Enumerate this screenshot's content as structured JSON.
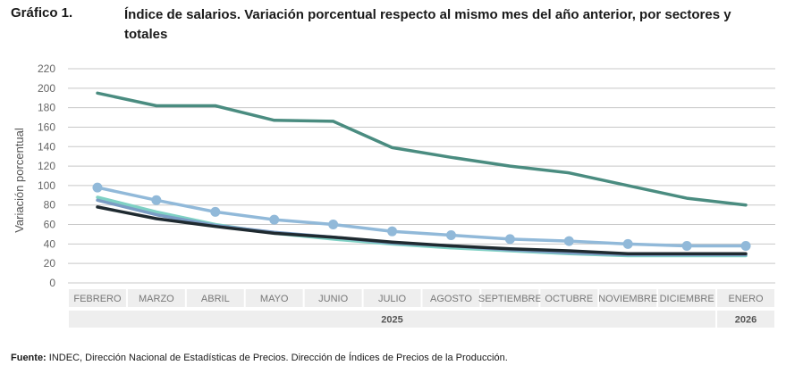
{
  "figure": {
    "number": "Gráfico 1.",
    "title": "Índice de salarios. Variación porcentual respecto al mismo mes del año anterior, por sectores y totales"
  },
  "source": {
    "label": "Fuente:",
    "text": "INDEC, Dirección Nacional de Estadísticas de Precios. Dirección de Índices de Precios de la Producción."
  },
  "chart_data": {
    "type": "line",
    "title": "Índice de salarios. Variación porcentual respecto al mismo mes del año anterior, por sectores y totales",
    "ylabel": "Variación porcentual",
    "xlabel": "",
    "ylim": [
      0,
      220
    ],
    "yticks": [
      0,
      20,
      40,
      60,
      80,
      100,
      120,
      140,
      160,
      180,
      200,
      220
    ],
    "grid": true,
    "categories": [
      "FEBRERO",
      "MARZO",
      "ABRIL",
      "MAYO",
      "JUNIO",
      "JULIO",
      "AGOSTO",
      "SEPTIEMBRE",
      "OCTUBRE",
      "NOVIEMBRE",
      "DICIEMBRE",
      "ENERO"
    ],
    "year_groups": [
      {
        "label": "2025",
        "count": 11
      },
      {
        "label": "2026",
        "count": 1
      }
    ],
    "series": [
      {
        "name": "serie-1",
        "color": "#4a8c80",
        "markers": false,
        "values": [
          195,
          182,
          182,
          167,
          166,
          139,
          129,
          120,
          113,
          100,
          87,
          80
        ]
      },
      {
        "name": "serie-2",
        "color": "#91b9d9",
        "markers": true,
        "values": [
          98,
          85,
          73,
          65,
          60,
          53,
          49,
          45,
          43,
          40,
          38,
          38
        ]
      },
      {
        "name": "serie-3",
        "color": "#7fd1c4",
        "markers": false,
        "values": [
          88,
          73,
          60,
          51,
          45,
          40,
          36,
          33,
          30,
          28,
          28,
          28
        ]
      },
      {
        "name": "serie-4",
        "color": "#7a9cc4",
        "markers": false,
        "values": [
          85,
          70,
          59,
          52,
          47,
          41,
          38,
          34,
          31,
          29,
          29,
          29
        ]
      },
      {
        "name": "serie-5",
        "color": "#1f2a30",
        "markers": false,
        "values": [
          78,
          66,
          58,
          51,
          47,
          42,
          38,
          35,
          33,
          30,
          30,
          30
        ]
      }
    ]
  }
}
